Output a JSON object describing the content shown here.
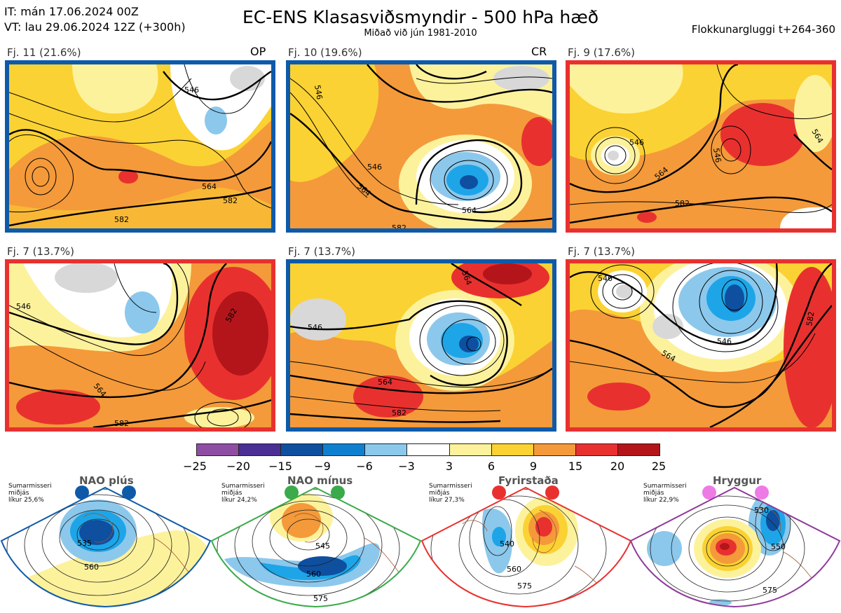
{
  "header": {
    "it_line": "IT: mán 17.06.2024 00Z",
    "vt_line": "VT: lau 29.06.2024 12Z  (+300h)",
    "title": "EC-ENS Klasasviðsmyndir - 500 hPa hæð",
    "subtitle": "Miðað við jún 1981-2010",
    "window": "Flokkunargluggi t+264-360"
  },
  "panels": [
    {
      "label": "Fj. 11 (21.6%)",
      "tag": "OP",
      "border_color": "#0f5aa8",
      "contours": [
        "546",
        "564",
        "582",
        "582"
      ]
    },
    {
      "label": "Fj. 10 (19.6%)",
      "tag": "CR",
      "border_color": "#0f5aa8",
      "contours": [
        "546",
        "546",
        "564",
        "564",
        "582"
      ]
    },
    {
      "label": "Fj. 9 (17.6%)",
      "tag": "",
      "border_color": "#e8312f",
      "contours": [
        "546",
        "546",
        "564",
        "582",
        "564"
      ]
    },
    {
      "label": "Fj. 7 (13.7%)",
      "tag": "",
      "border_color": "#e8312f",
      "contours": [
        "546",
        "564",
        "582",
        "582"
      ]
    },
    {
      "label": "Fj. 7 (13.7%)",
      "tag": "",
      "border_color": "#0f5aa8",
      "contours": [
        "546",
        "564",
        "582",
        "564"
      ]
    },
    {
      "label": "Fj. 7 (13.7%)",
      "tag": "",
      "border_color": "#e8312f",
      "contours": [
        "546",
        "546",
        "564",
        "582"
      ]
    }
  ],
  "colorbar": {
    "ticks": [
      "−25",
      "−20",
      "−15",
      "−9",
      "−6",
      "−3",
      "3",
      "6",
      "9",
      "15",
      "20",
      "25"
    ],
    "colors": [
      "#8e4ea3",
      "#4a2f94",
      "#0e4fa0",
      "#0f80cf",
      "#1ea5e8",
      "#8cc8ec",
      "#ffffff",
      "#fdf29c",
      "#fbd233",
      "#f49a3a",
      "#e8312f",
      "#b3151b"
    ]
  },
  "regimes": [
    {
      "name": "NAO plús",
      "note": "Sumarmisseri\nmiðjás\nlíkur 25,6%",
      "color": "#0f5aa8",
      "contours": [
        "535",
        "560"
      ]
    },
    {
      "name": "NAO mínus",
      "note": "Sumarmisseri\nmiðjás\nlíkur 24,2%",
      "color": "#3aaa4a",
      "contours": [
        "545",
        "560",
        "575"
      ]
    },
    {
      "name": "Fyrirstaða",
      "note": "Sumarmisseri\nmiðjás\nlíkur 27,3%",
      "color": "#e8312f",
      "contours": [
        "540",
        "560",
        "575"
      ]
    },
    {
      "name": "Hryggur",
      "note": "Sumarmisseri\nmiðjás\nlíkur 22,9%",
      "color": "#8e3a9a",
      "dot_color": "#ee7ae6",
      "contours": [
        "530",
        "550",
        "575"
      ]
    }
  ]
}
